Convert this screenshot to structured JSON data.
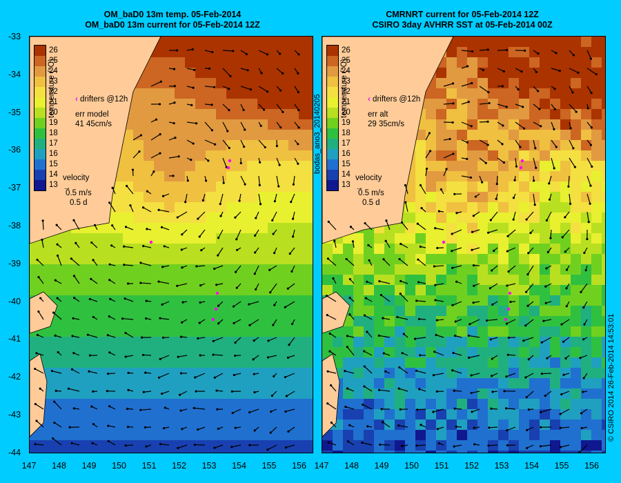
{
  "left": {
    "title1": "OM_baD0 13m temp. 05-Feb-2014",
    "title2": "OM_baD0 13m current for 05-Feb-2014 12Z",
    "drifters_label": "drifters @12h",
    "err_label": "err model",
    "err_value": "41 45cm/s",
    "velocity_label": "velocity",
    "velocity_scale": "0.5 m/s",
    "velocity_days": "0.5 d"
  },
  "right": {
    "title1": "CMRNRT current for 05-Feb-2014 12Z",
    "title2": "CSIRO 3day AVHRR SST at 05-Feb-2014 00Z",
    "drifters_label": "drifters @12h",
    "err_label": "err alt",
    "err_value": "29 35cm/s",
    "velocity_label": "velocity",
    "velocity_scale": "0.5 m/s",
    "velocity_days": "0.5 d"
  },
  "colorbar": {
    "title": "temperature (°C)",
    "ticks": [
      "26",
      "25",
      "24",
      "23",
      "22",
      "21",
      "20",
      "19",
      "18",
      "17",
      "16",
      "15",
      "14",
      "13"
    ],
    "colors": [
      "#aa3300",
      "#cc6622",
      "#e29a40",
      "#f0c040",
      "#f4e040",
      "#e8f030",
      "#b8e020",
      "#70d020",
      "#30c040",
      "#20b080",
      "#20a0c0",
      "#2070d0",
      "#1840b0",
      "#101890"
    ]
  },
  "axes": {
    "y_ticks": [
      "-33",
      "-34",
      "-35",
      "-36",
      "-37",
      "-38",
      "-39",
      "-40",
      "-41",
      "-42",
      "-43",
      "-44"
    ],
    "x_ticks": [
      "147",
      "148",
      "149",
      "150",
      "151",
      "152",
      "153",
      "154",
      "155",
      "156"
    ]
  },
  "middle_label": "bodas_ano3_20140205",
  "credit": "© CSIRO 2014   26-Feb-2014 14:53:01",
  "colors": {
    "background": "#00ccff",
    "land": "#ffcc99",
    "drifter": "#ff00ff"
  }
}
